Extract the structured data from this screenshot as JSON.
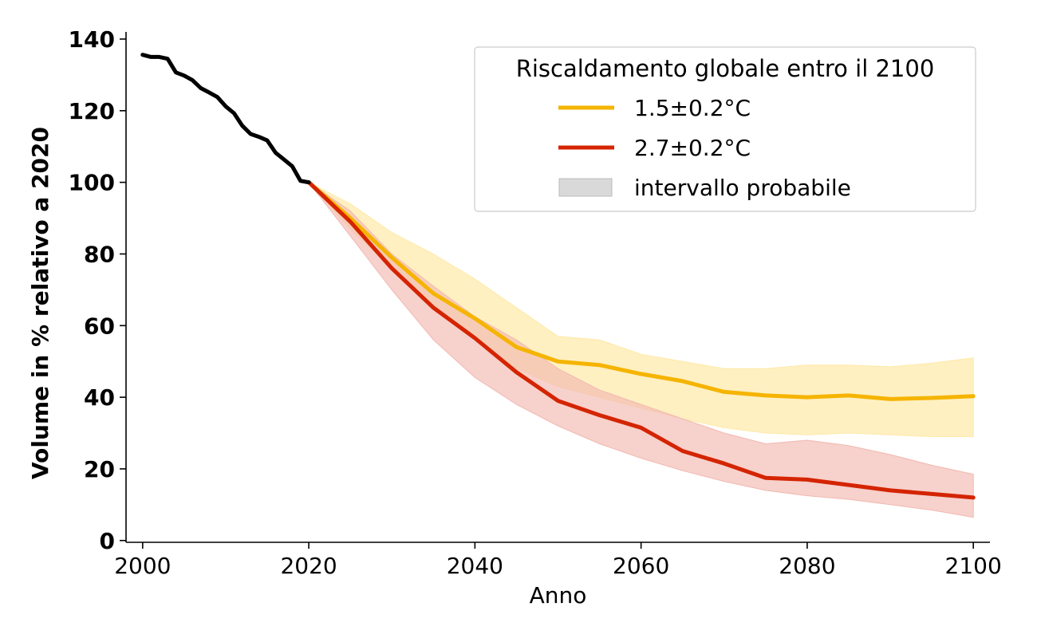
{
  "chart_data": {
    "type": "line",
    "xlabel": "Anno",
    "ylabel": "Volume in % relativo a 2020",
    "xlim": [
      1998,
      2102
    ],
    "ylim": [
      -0.5,
      142
    ],
    "xticks": [
      2000,
      2020,
      2040,
      2060,
      2080,
      2100
    ],
    "yticks": [
      0,
      20,
      40,
      60,
      80,
      100,
      120,
      140
    ],
    "grid": false,
    "legend": {
      "title": "Riscaldamento globale entro il 2100",
      "placement": "top-right",
      "entries": [
        {
          "label": "1.5±0.2°C",
          "kind": "line",
          "color": "#f5b400"
        },
        {
          "label": "2.7±0.2°C",
          "kind": "line",
          "color": "#d42400"
        },
        {
          "label": "intervallo probabile",
          "kind": "patch",
          "color": "#d9d9d9"
        }
      ]
    },
    "historical": {
      "color": "#000000",
      "x": [
        2000,
        2001,
        2002,
        2003,
        2004,
        2005,
        2006,
        2007,
        2008,
        2009,
        2010,
        2011,
        2012,
        2013,
        2014,
        2015,
        2016,
        2017,
        2018,
        2019,
        2020
      ],
      "y": [
        135.6,
        135,
        135,
        134.5,
        130.7,
        129.8,
        128.5,
        126.3,
        125.1,
        123.8,
        121.2,
        119.3,
        115.8,
        113.5,
        112.7,
        111.7,
        108.3,
        106.4,
        104.5,
        100.4,
        100
      ]
    },
    "series": [
      {
        "name": "1.5±0.2°C",
        "color": "#f5b400",
        "band_color": "#ffe9a8",
        "x": [
          2020,
          2025,
          2030,
          2035,
          2040,
          2045,
          2050,
          2055,
          2060,
          2065,
          2070,
          2075,
          2080,
          2085,
          2090,
          2095,
          2100
        ],
        "y": [
          100,
          90,
          79,
          69,
          62,
          54,
          50,
          49,
          46.5,
          44.5,
          41.5,
          40.5,
          40,
          40.5,
          39.5,
          39.8,
          40.3
        ],
        "lower": [
          100,
          87,
          76,
          65,
          57,
          48,
          43,
          40,
          37,
          34,
          31.5,
          30,
          29.5,
          30,
          29.5,
          29,
          29
        ],
        "upper": [
          100,
          94,
          86,
          80,
          73,
          65,
          57,
          56,
          52,
          50,
          48,
          48,
          49,
          49,
          48.5,
          49.5,
          51
        ]
      },
      {
        "name": "2.7±0.2°C",
        "color": "#d42400",
        "band_color": "#f2b9b1",
        "x": [
          2020,
          2025,
          2030,
          2035,
          2040,
          2045,
          2050,
          2055,
          2060,
          2065,
          2070,
          2075,
          2080,
          2085,
          2090,
          2095,
          2100
        ],
        "y": [
          100,
          89,
          76,
          65,
          56.5,
          47,
          39,
          35,
          31.5,
          25,
          21.5,
          17.5,
          17,
          15.5,
          14,
          13,
          12
        ],
        "lower": [
          100,
          85,
          70,
          56,
          45.5,
          38,
          32,
          27,
          23,
          19.5,
          16.5,
          14,
          12.5,
          11.5,
          10,
          8.5,
          6.5
        ],
        "upper": [
          100,
          92,
          80,
          71,
          62.5,
          56,
          48,
          42,
          38,
          34,
          30,
          27,
          28,
          26.5,
          24,
          21,
          18.5
        ]
      }
    ]
  }
}
